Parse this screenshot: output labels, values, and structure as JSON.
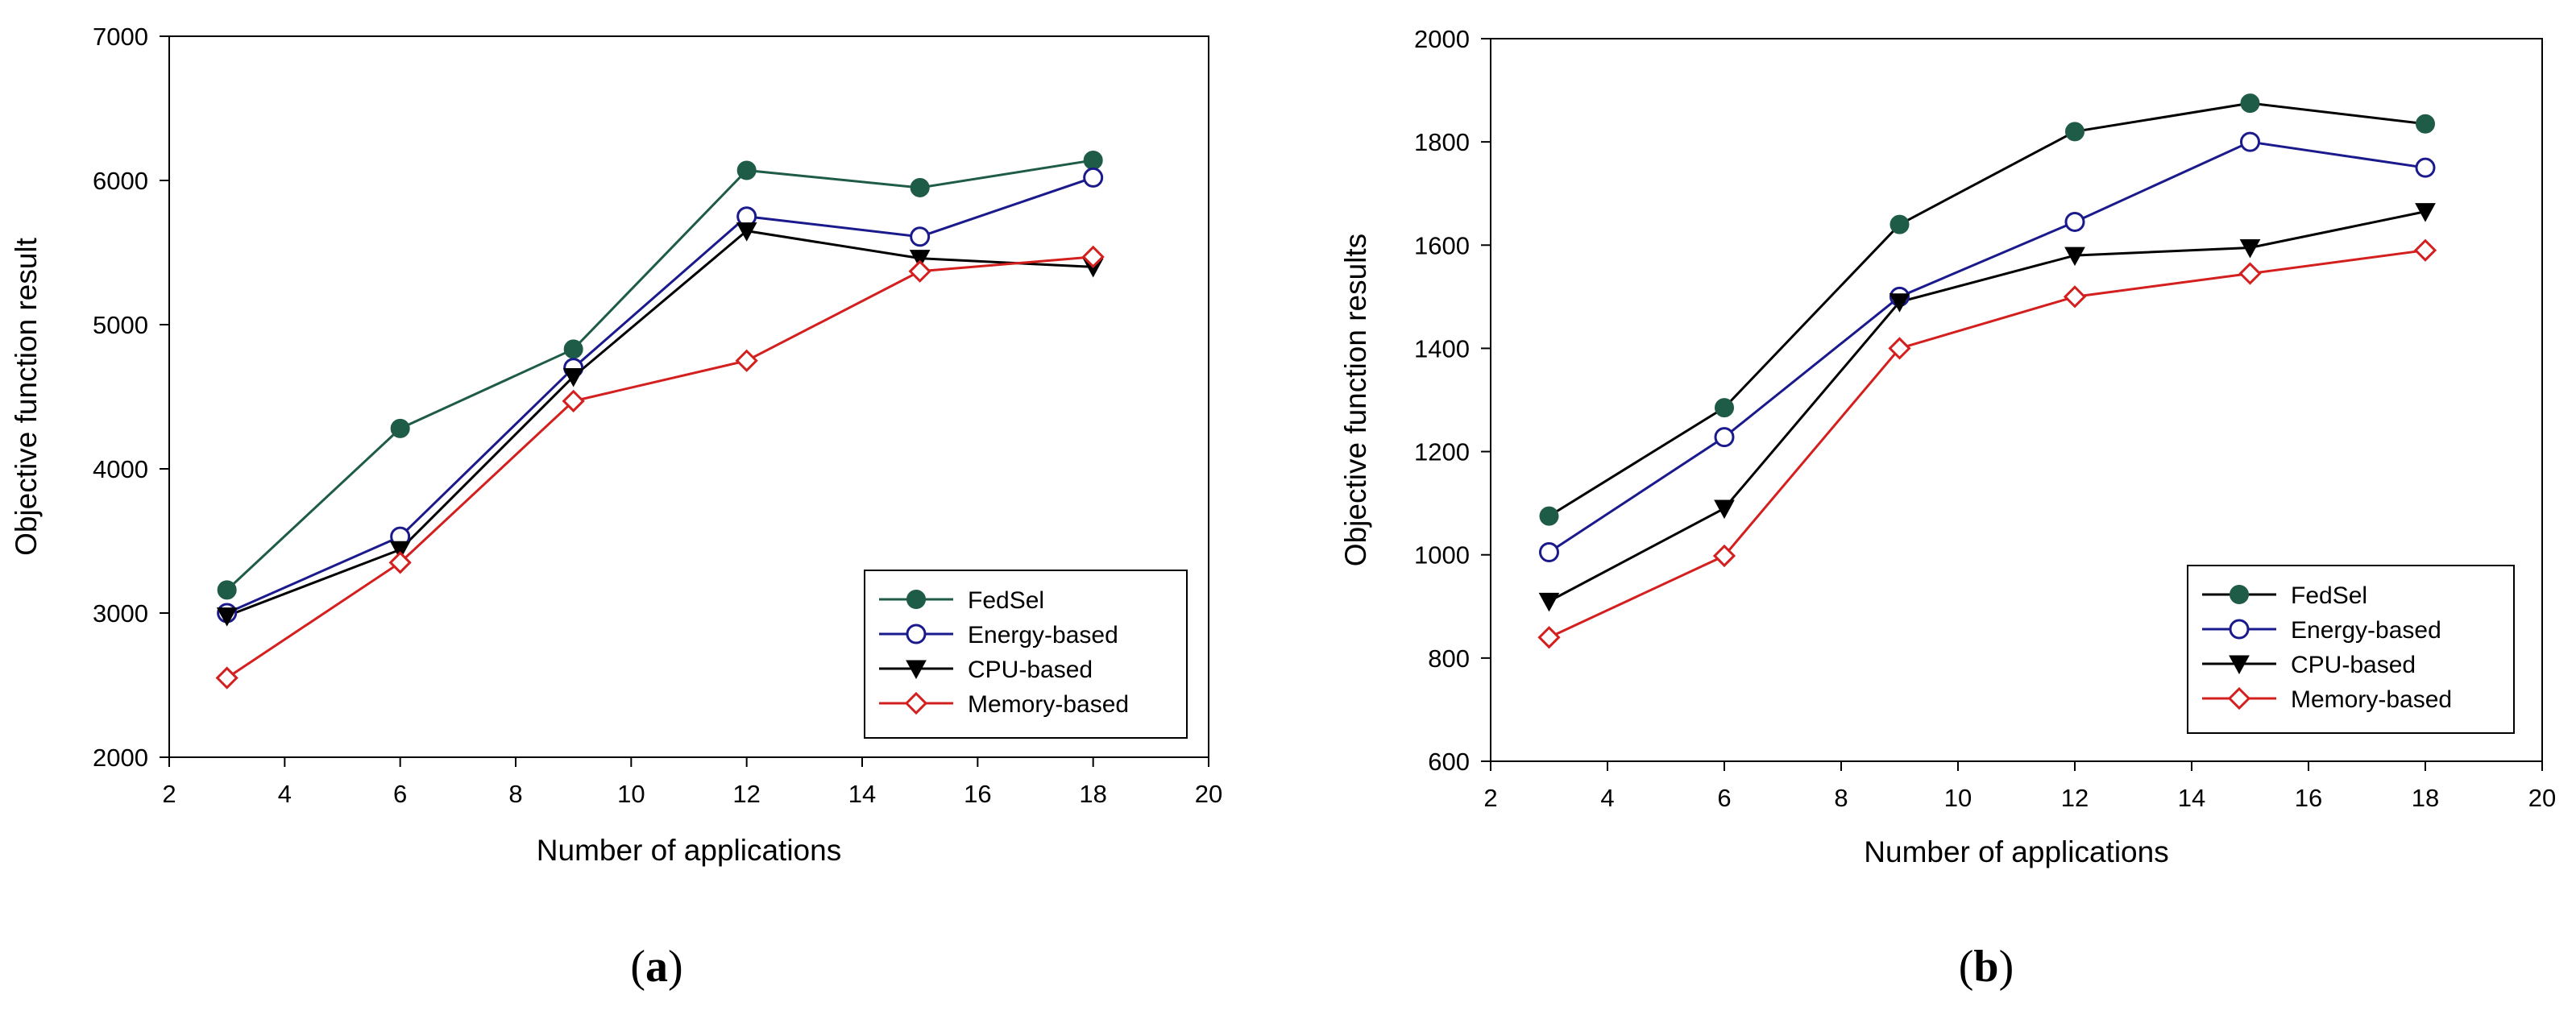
{
  "chart_data": [
    {
      "type": "line",
      "panel_label": "(a)",
      "label_paren_open": "(",
      "label_letter": "a",
      "label_paren_close": ")",
      "xlabel": "Number of applications",
      "ylabel": "Objective function result",
      "xlim": [
        2,
        20
      ],
      "ylim": [
        2000,
        7000
      ],
      "xticks": [
        2,
        4,
        6,
        8,
        10,
        12,
        14,
        16,
        18,
        20
      ],
      "yticks": [
        2000,
        3000,
        4000,
        5000,
        6000,
        7000
      ],
      "legend_position": "bottom-right",
      "x": [
        3,
        6,
        9,
        12,
        15,
        18
      ],
      "series": [
        {
          "name": "FedSel",
          "values": [
            3160,
            4280,
            4830,
            6070,
            5950,
            6140
          ],
          "color": "#1f5c47",
          "marker": "filled-circle"
        },
        {
          "name": "Energy-based",
          "values": [
            3000,
            3530,
            4700,
            5750,
            5610,
            6020
          ],
          "color": "#1a1a8c",
          "marker": "open-circle"
        },
        {
          "name": "CPU-based",
          "values": [
            2980,
            3440,
            4640,
            5650,
            5460,
            5400
          ],
          "color": "#000000",
          "marker": "filled-triangle-down"
        },
        {
          "name": "Memory-based",
          "values": [
            2550,
            3350,
            4470,
            4750,
            5370,
            5470
          ],
          "color": "#d41f1f",
          "marker": "open-diamond"
        }
      ]
    },
    {
      "type": "line",
      "panel_label": "(b)",
      "label_paren_open": "(",
      "label_letter": "b",
      "label_paren_close": ")",
      "xlabel": "Number of applications",
      "ylabel": "Objective function results",
      "xlim": [
        2,
        20
      ],
      "ylim": [
        600,
        2000
      ],
      "xticks": [
        2,
        4,
        6,
        8,
        10,
        12,
        14,
        16,
        18,
        20
      ],
      "yticks": [
        600,
        800,
        1000,
        1200,
        1400,
        1600,
        1800,
        2000
      ],
      "legend_position": "bottom-right",
      "x": [
        3,
        6,
        9,
        12,
        15,
        18
      ],
      "series": [
        {
          "name": "FedSel",
          "values": [
            1075,
            1285,
            1640,
            1820,
            1875,
            1835
          ],
          "color": "#000000",
          "marker": "filled-circle",
          "marker_color": "#1f5c47"
        },
        {
          "name": "Energy-based",
          "values": [
            1005,
            1228,
            1500,
            1645,
            1800,
            1750
          ],
          "color": "#1a1a8c",
          "marker": "open-circle"
        },
        {
          "name": "CPU-based",
          "values": [
            910,
            1090,
            1490,
            1580,
            1595,
            1665
          ],
          "color": "#000000",
          "marker": "filled-triangle-down"
        },
        {
          "name": "Memory-based",
          "values": [
            840,
            998,
            1400,
            1500,
            1545,
            1590
          ],
          "color": "#d41f1f",
          "marker": "open-diamond"
        }
      ]
    }
  ]
}
